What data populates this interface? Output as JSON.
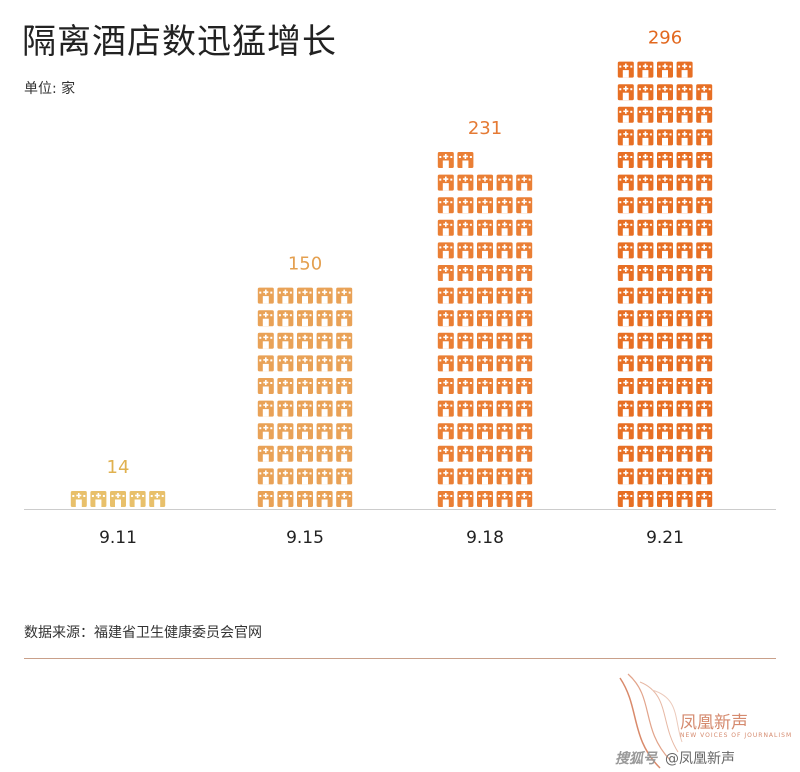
{
  "header": {
    "title": "隔离酒店数迅猛增长",
    "unit": "单位: 家"
  },
  "footer": {
    "source": "数据来源：福建省卫生健康委员会官网",
    "logo_name": "凤凰新声",
    "logo_tagline": "NEW VOICES OF JOURNALISM",
    "credit_brand": "搜狐号",
    "credit_text": "@凤凰新声"
  },
  "colors": {
    "bar_9_11": "#e8c06b",
    "bar_9_15": "#e9a257",
    "bar_9_18": "#ea7f35",
    "bar_9_21": "#e76f24",
    "label_9_11": "#e0b14f",
    "label_9_15": "#e4a050",
    "label_9_18": "#e57a34",
    "label_9_21": "#e2681f",
    "axis": "#cccccc"
  },
  "chart_data": {
    "type": "bar",
    "style": "pictogram",
    "icon": "hotel-icon",
    "categories": [
      "9.11",
      "9.15",
      "9.18",
      "9.21"
    ],
    "values": [
      14,
      150,
      231,
      296
    ],
    "title": "隔离酒店数迅猛增长",
    "ylabel": "单位: 家",
    "ylim": [
      0,
      300
    ],
    "grid": false,
    "legend": "none"
  }
}
